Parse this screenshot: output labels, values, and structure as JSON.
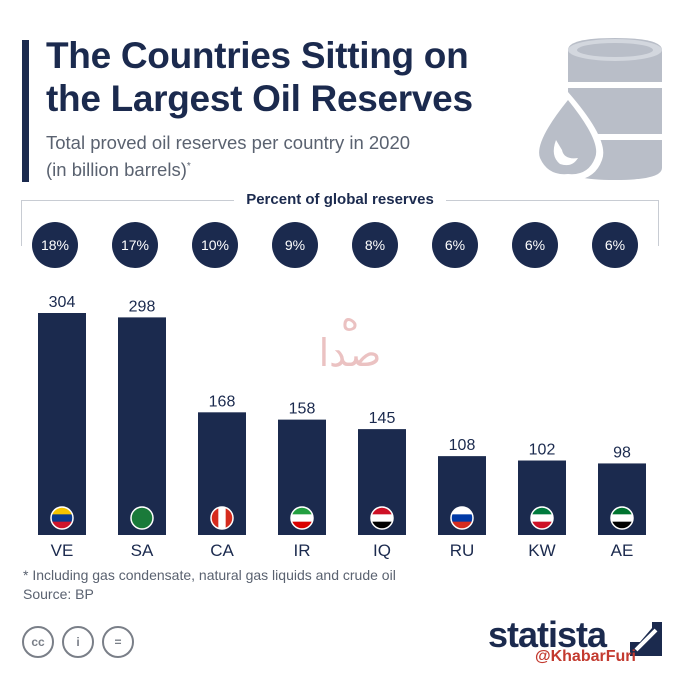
{
  "header": {
    "title_line1": "The Countries Sitting on",
    "title_line2": "the Largest Oil Reserves",
    "subtitle_line1": "Total proved oil reserves per country in 2020",
    "subtitle_line2": "(in billion barrels)",
    "subtitle_mark": "*"
  },
  "percent_header": "Percent of global reserves",
  "chart_data": {
    "type": "bar",
    "title": "The Countries Sitting on the Largest Oil Reserves",
    "subtitle": "Total proved oil reserves per country in 2020 (in billion barrels)*",
    "categories": [
      "VE",
      "SA",
      "CA",
      "IR",
      "IQ",
      "RU",
      "KW",
      "AE"
    ],
    "values": [
      304,
      298,
      168,
      158,
      145,
      108,
      102,
      98
    ],
    "value_labels": [
      "304",
      "298",
      "168",
      "158",
      "145",
      "108",
      "102",
      "98"
    ],
    "percent_of_global": [
      "18%",
      "17%",
      "10%",
      "9%",
      "8%",
      "6%",
      "6%",
      "6%"
    ],
    "ylim": [
      0,
      304
    ],
    "xlabel": "",
    "ylabel": "",
    "grid": false,
    "bar_color": "#1b2a4e"
  },
  "footnote": "* Including gas condensate, natural gas liquids and crude oil",
  "source": "Source: BP",
  "license_icons": [
    "cc",
    "person",
    "equals"
  ],
  "license_labels": [
    "cc",
    "i",
    "="
  ],
  "brand": "statista",
  "watermark_text": "صدا",
  "watermark_text2": "ه",
  "handle": "@KhabarFuri",
  "colors": {
    "navy": "#1b2a4e",
    "gray_text": "#5a6270",
    "barrel": "#b9bec8",
    "watermark": "#e8b8b8",
    "handle": "#c33a2f"
  }
}
